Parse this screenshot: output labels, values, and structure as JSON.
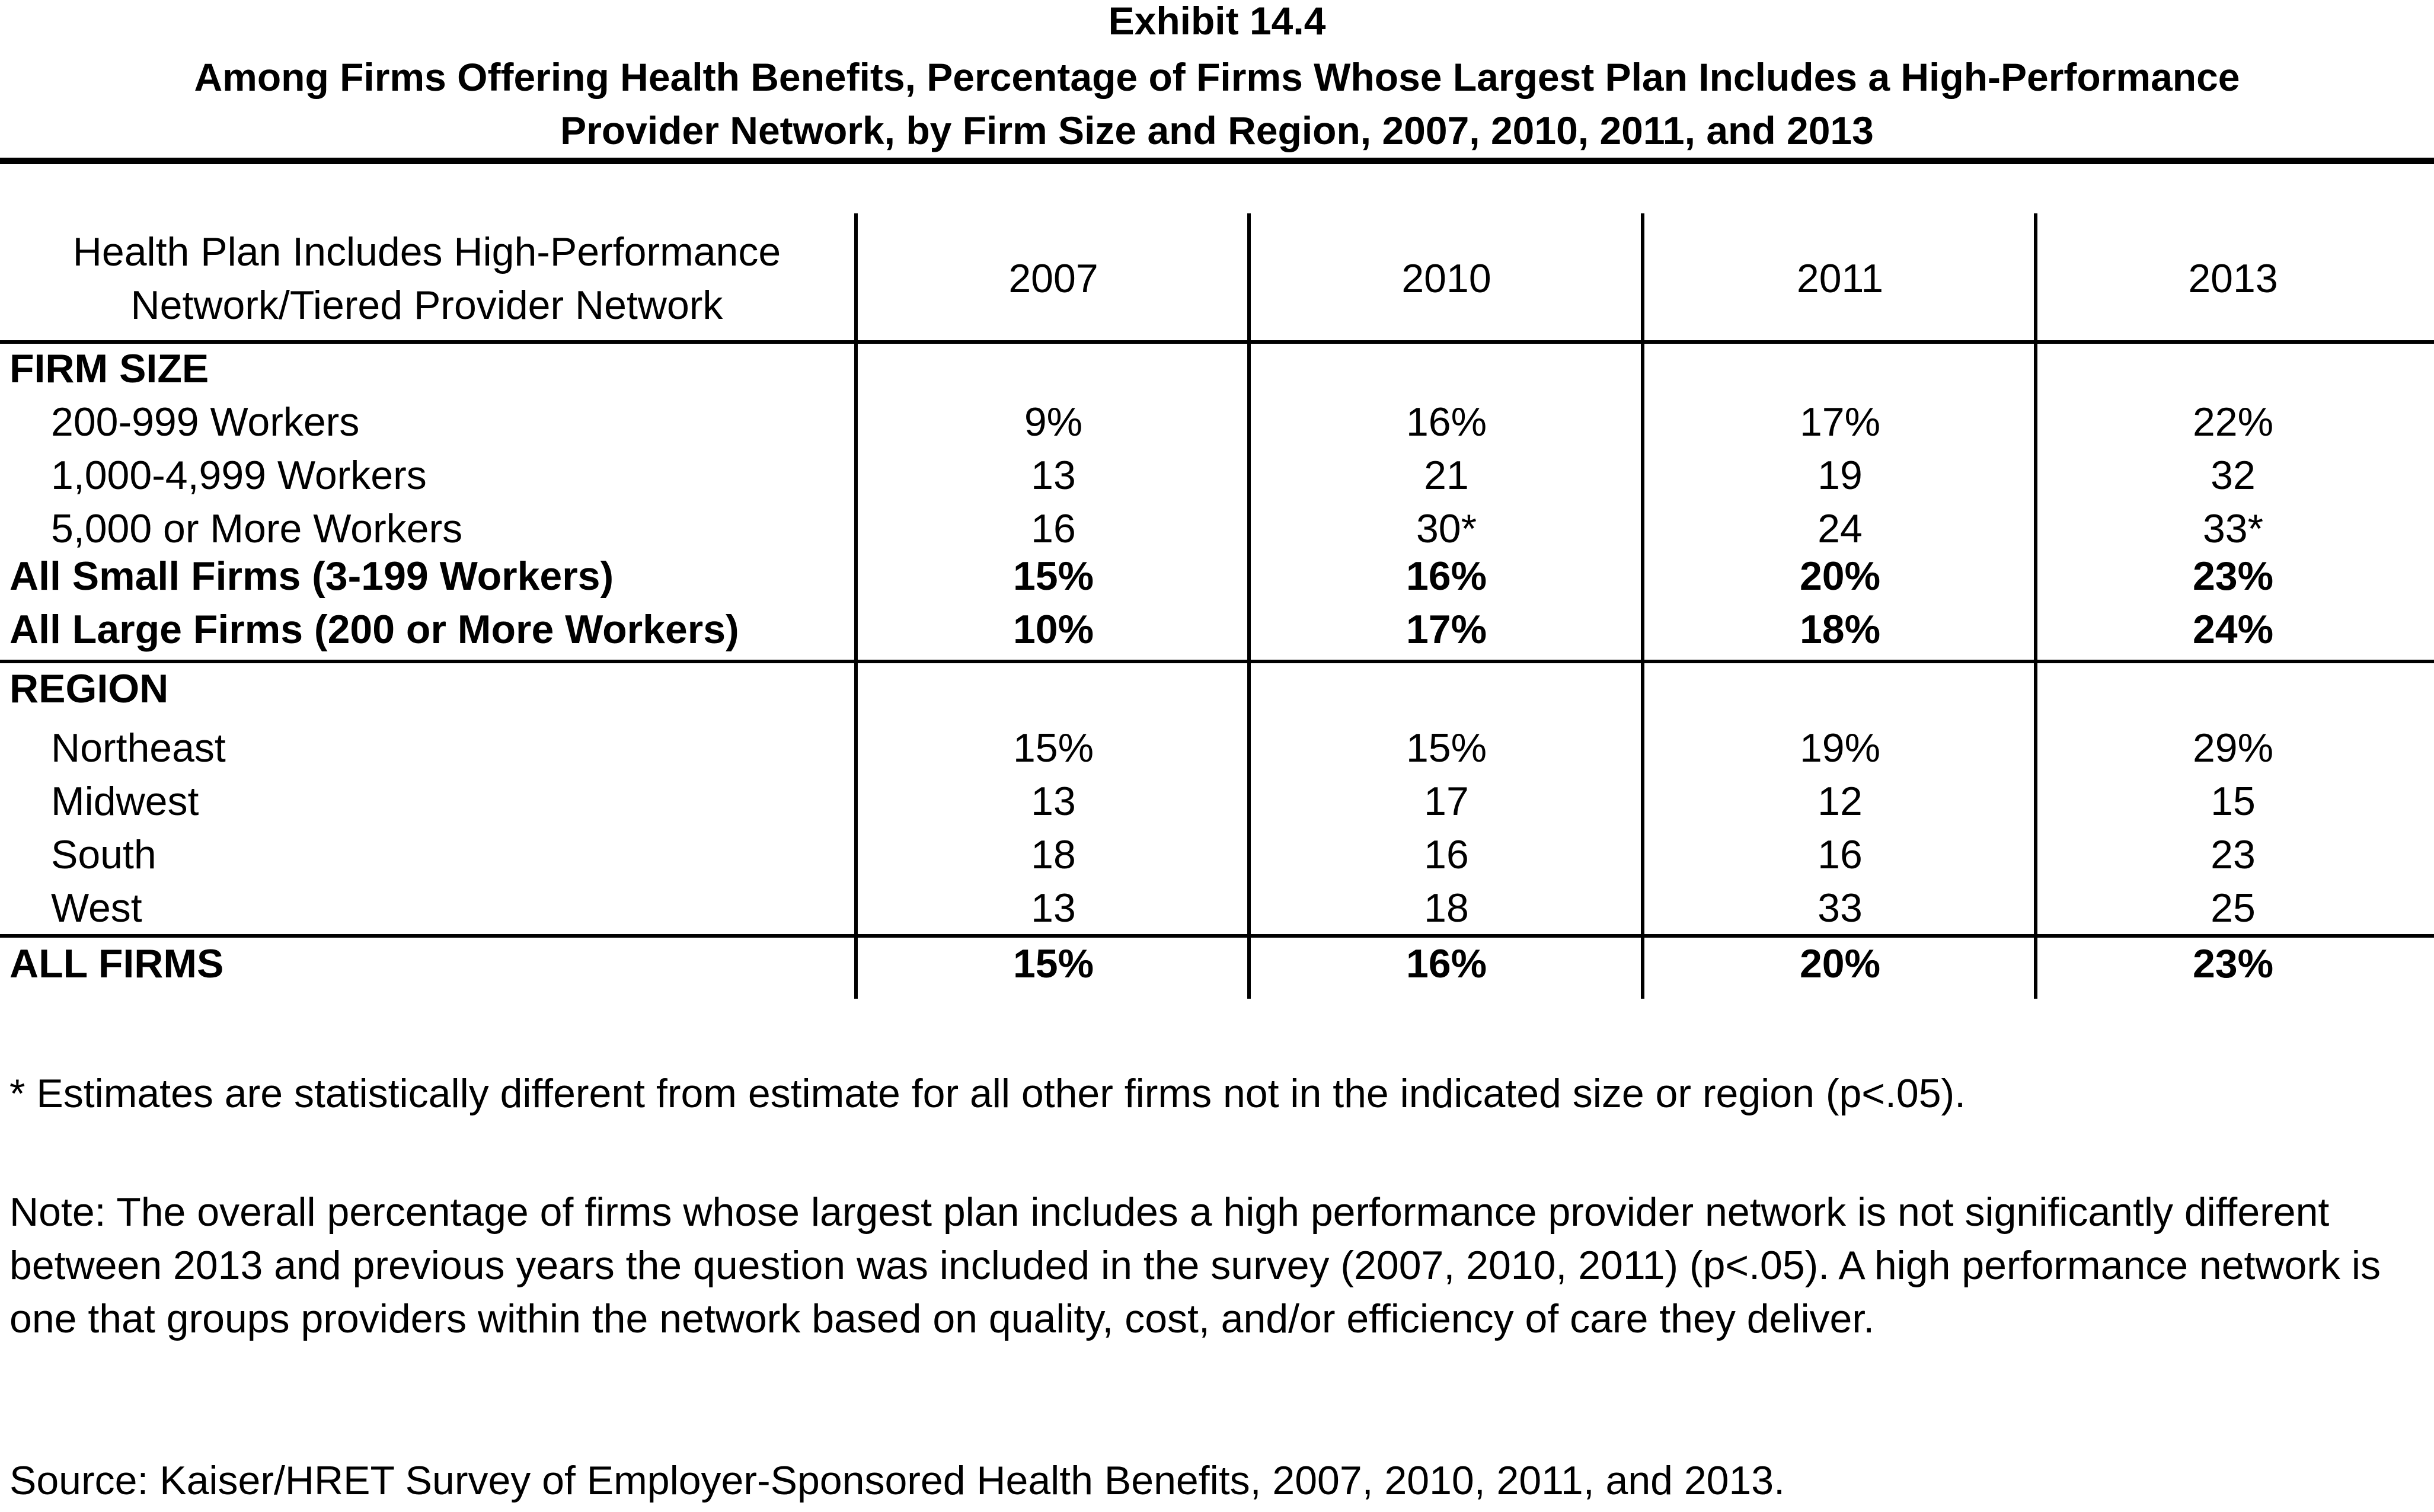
{
  "exhibit_label": "Exhibit 14.4",
  "title_line1": "Among Firms Offering Health Benefits, Percentage of Firms Whose Largest Plan Includes a High-Performance",
  "title_line2": "Provider Network, by Firm Size and Region,  2007, 2010, 2011, and 2013",
  "header": {
    "row_label_line1": "Health Plan Includes High-Performance",
    "row_label_line2": "Network/Tiered Provider Network",
    "years": [
      "2007",
      "2010",
      "2011",
      "2013"
    ]
  },
  "sections": {
    "firm_size": "FIRM SIZE",
    "region": "REGION"
  },
  "chart_data": {
    "type": "table",
    "title": "Among Firms Offering Health Benefits, Percentage of Firms Whose Largest Plan Includes a High-Performance Provider Network, by Firm Size and Region,  2007, 2010, 2011, and 2013",
    "columns": [
      "2007",
      "2010",
      "2011",
      "2013"
    ],
    "rows": [
      {
        "label": "200-999 Workers",
        "cells": [
          "9%",
          "16%",
          "17%",
          "22%"
        ]
      },
      {
        "label": "1,000-4,999 Workers",
        "cells": [
          "13",
          "21",
          "19",
          "32"
        ]
      },
      {
        "label": "5,000 or More Workers",
        "cells": [
          "16",
          "30*",
          "24",
          "33*"
        ]
      },
      {
        "label": "All Small Firms (3-199 Workers)",
        "cells": [
          "15%",
          "16%",
          "20%",
          "23%"
        ]
      },
      {
        "label": "All Large Firms (200 or More Workers)",
        "cells": [
          "10%",
          "17%",
          "18%",
          "24%"
        ]
      },
      {
        "label": "Northeast",
        "cells": [
          "15%",
          "15%",
          "19%",
          "29%"
        ]
      },
      {
        "label": "Midwest",
        "cells": [
          "13",
          "17",
          "12",
          "15"
        ]
      },
      {
        "label": "South",
        "cells": [
          "18",
          "16",
          "16",
          "23"
        ]
      },
      {
        "label": "West",
        "cells": [
          "13",
          "18",
          "33",
          "25"
        ]
      },
      {
        "label": "ALL FIRMS",
        "cells": [
          "15%",
          "16%",
          "20%",
          "23%"
        ]
      }
    ]
  },
  "footnote": "* Estimates are statistically different from estimate for all other firms not in the indicated size or region (p<.05).",
  "note": "Note: The overall percentage of firms whose largest plan includes a high performance provider network is not significantly different between 2013 and previous years the question was included in the survey (2007, 2010, 2011)  (p<.05).  A high performance network is one that groups providers within the network based on quality, cost, and/or efficiency of care they deliver.",
  "source": "Source: Kaiser/HRET Survey of Employer-Sponsored Health Benefits, 2007, 2010, 2011, and 2013."
}
